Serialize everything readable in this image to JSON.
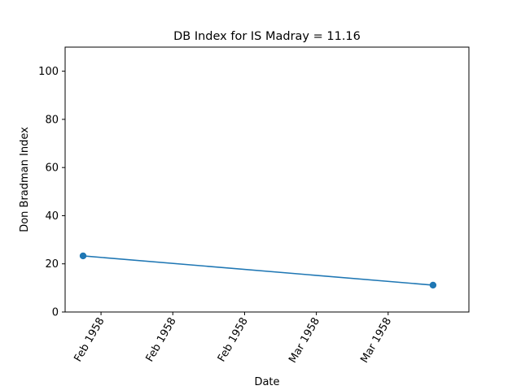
{
  "chart_data": {
    "type": "line",
    "title": "DB Index for IS Madray = 11.16",
    "xlabel": "Date",
    "ylabel": "Don Bradman Index",
    "x": [
      "1958-02-03",
      "1958-03-14"
    ],
    "series": [
      {
        "values": [
          23.3,
          11.16
        ]
      }
    ],
    "xlim": [
      "1958-02-01",
      "1958-03-18"
    ],
    "ylim": [
      0,
      110
    ],
    "x_ticks": [
      {
        "date": "1958-02-05",
        "label": "Feb 1958"
      },
      {
        "date": "1958-02-13",
        "label": "Feb 1958"
      },
      {
        "date": "1958-02-21",
        "label": "Feb 1958"
      },
      {
        "date": "1958-03-01",
        "label": "Mar 1958"
      },
      {
        "date": "1958-03-09",
        "label": "Mar 1958"
      }
    ],
    "y_ticks": [
      0,
      20,
      40,
      60,
      80,
      100
    ],
    "grid": false,
    "legend": "none",
    "colors": {
      "series": "#1f77b4",
      "axes": "#000000"
    }
  }
}
